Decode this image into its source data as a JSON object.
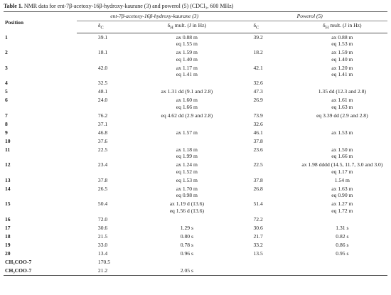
{
  "caption": {
    "label": "Table 1.",
    "text": "NMR data for ent-7β-acetoxy-16β-hydroxy-kaurane (3) and powerol (5) (CDCl₃, 600 MHz)"
  },
  "table": {
    "position_header": "Position",
    "groups": [
      "ent-7β-acetoxy-16β-hydroxy-kaurane (3)",
      "Powerol (5)"
    ],
    "subheaders": [
      {
        "symbol": "δ",
        "sub": "C"
      },
      {
        "symbol": "δ",
        "sub": "H",
        "rest": "mult. (J in Hz)"
      },
      {
        "symbol": "δ",
        "sub": "C"
      },
      {
        "symbol": "δ",
        "sub": "H",
        "rest": "mult. (J in Hz)"
      }
    ],
    "rows": [
      {
        "position": "1",
        "c3": "39.1",
        "h3": [
          "ax 0.88 m",
          "eq 1.55 m"
        ],
        "c5": "39.2",
        "h5": [
          "ax 0.88 m",
          "eq 1.53 m"
        ]
      },
      {
        "position": "2",
        "c3": "18.1",
        "h3": [
          "ax 1.59 m",
          "eq 1.40 m"
        ],
        "c5": "18.2",
        "h5": [
          "ax 1.59 m",
          "eq 1.40 m"
        ]
      },
      {
        "position": "3",
        "c3": "42.0",
        "h3": [
          "ax 1.17 m",
          "eq 1.41 m"
        ],
        "c5": "42.1",
        "h5": [
          "ax 1.20 m",
          "eq 1.41 m"
        ]
      },
      {
        "position": "4",
        "c3": "32.5",
        "h3": [],
        "c5": "32.6",
        "h5": []
      },
      {
        "position": "5",
        "c3": "48.1",
        "h3": [
          "ax 1.31 dd (9.1 and 2.8)"
        ],
        "c5": "47.3",
        "h5": [
          "1.35 dd (12.3 and 2.8)"
        ]
      },
      {
        "position": "6",
        "c3": "24.0",
        "h3": [
          "ax 1.60 m",
          "eq 1.66 m"
        ],
        "c5": "26.9",
        "h5": [
          "ax 1.61 m",
          "eq 1.63 m"
        ]
      },
      {
        "position": "7",
        "c3": "76.2",
        "h3": [
          "eq 4.62 dd (2.9 and 2.8)"
        ],
        "c5": "73.9",
        "h5": [
          "eq 3.39 dd (2.9 and 2.8)"
        ]
      },
      {
        "position": "8",
        "c3": "37.1",
        "h3": [],
        "c5": "32.6",
        "h5": []
      },
      {
        "position": "9",
        "c3": "46.8",
        "h3": [
          "ax 1.57 m"
        ],
        "c5": "46.1",
        "h5": [
          "ax 1.53 m"
        ]
      },
      {
        "position": "10",
        "c3": "37.6",
        "h3": [],
        "c5": "37.8",
        "h5": []
      },
      {
        "position": "11",
        "c3": "22.5",
        "h3": [
          "ax 1.18 m",
          "eq 1.99 m"
        ],
        "c5": "23.6",
        "h5": [
          "ax 1.50 m",
          "eq 1.66 m"
        ]
      },
      {
        "position": "12",
        "c3": "23.4",
        "h3": [
          "ax 1.24 m",
          "eq 1.52 m"
        ],
        "c5": "22.5",
        "h5": [
          "ax 1.98 dddd (14.5, 11.7, 3.0 and 3.0)",
          "eq 1.17 m"
        ]
      },
      {
        "position": "13",
        "c3": "37.8",
        "h3": [
          "eq 1.53 m"
        ],
        "c5": "37.8",
        "h5": [
          "1.54 m"
        ]
      },
      {
        "position": "14",
        "c3": "26.5",
        "h3": [
          "ax 1.70 m",
          "eq 0.98 m"
        ],
        "c5": "26.8",
        "h5": [
          "ax 1.63 m",
          "eq 0.90 m"
        ]
      },
      {
        "position": "15",
        "c3": "50.4",
        "h3": [
          "ax 1.19 d (13.6)",
          "eq 1.56 d (13.6)"
        ],
        "c5": "51.4",
        "h5": [
          "ax 1.27 m",
          "eq 1.72 m"
        ]
      },
      {
        "position": "16",
        "c3": "72.0",
        "h3": [],
        "c5": "72.2",
        "h5": []
      },
      {
        "position": "17",
        "c3": "30.6",
        "h3": [
          "1.29 s"
        ],
        "c5": "30.6",
        "h5": [
          "1.31 s"
        ]
      },
      {
        "position": "18",
        "c3": "21.5",
        "h3": [
          "0.80 s"
        ],
        "c5": "21.7",
        "h5": [
          "0.82 s"
        ]
      },
      {
        "position": "19",
        "c3": "33.0",
        "h3": [
          "0.78 s"
        ],
        "c5": "33.2",
        "h5": [
          "0.86 s"
        ]
      },
      {
        "position": "20",
        "c3": "13.4",
        "h3": [
          "0.96 s"
        ],
        "c5": "13.5",
        "h5": [
          "0.95 s"
        ]
      },
      {
        "position": "CH₃COO-7",
        "c3": "170.5",
        "h3": [],
        "h5": []
      },
      {
        "position": "CH₃COO-7",
        "c3": "21.2",
        "h3": [
          "2.05 s"
        ],
        "h5": []
      }
    ]
  }
}
